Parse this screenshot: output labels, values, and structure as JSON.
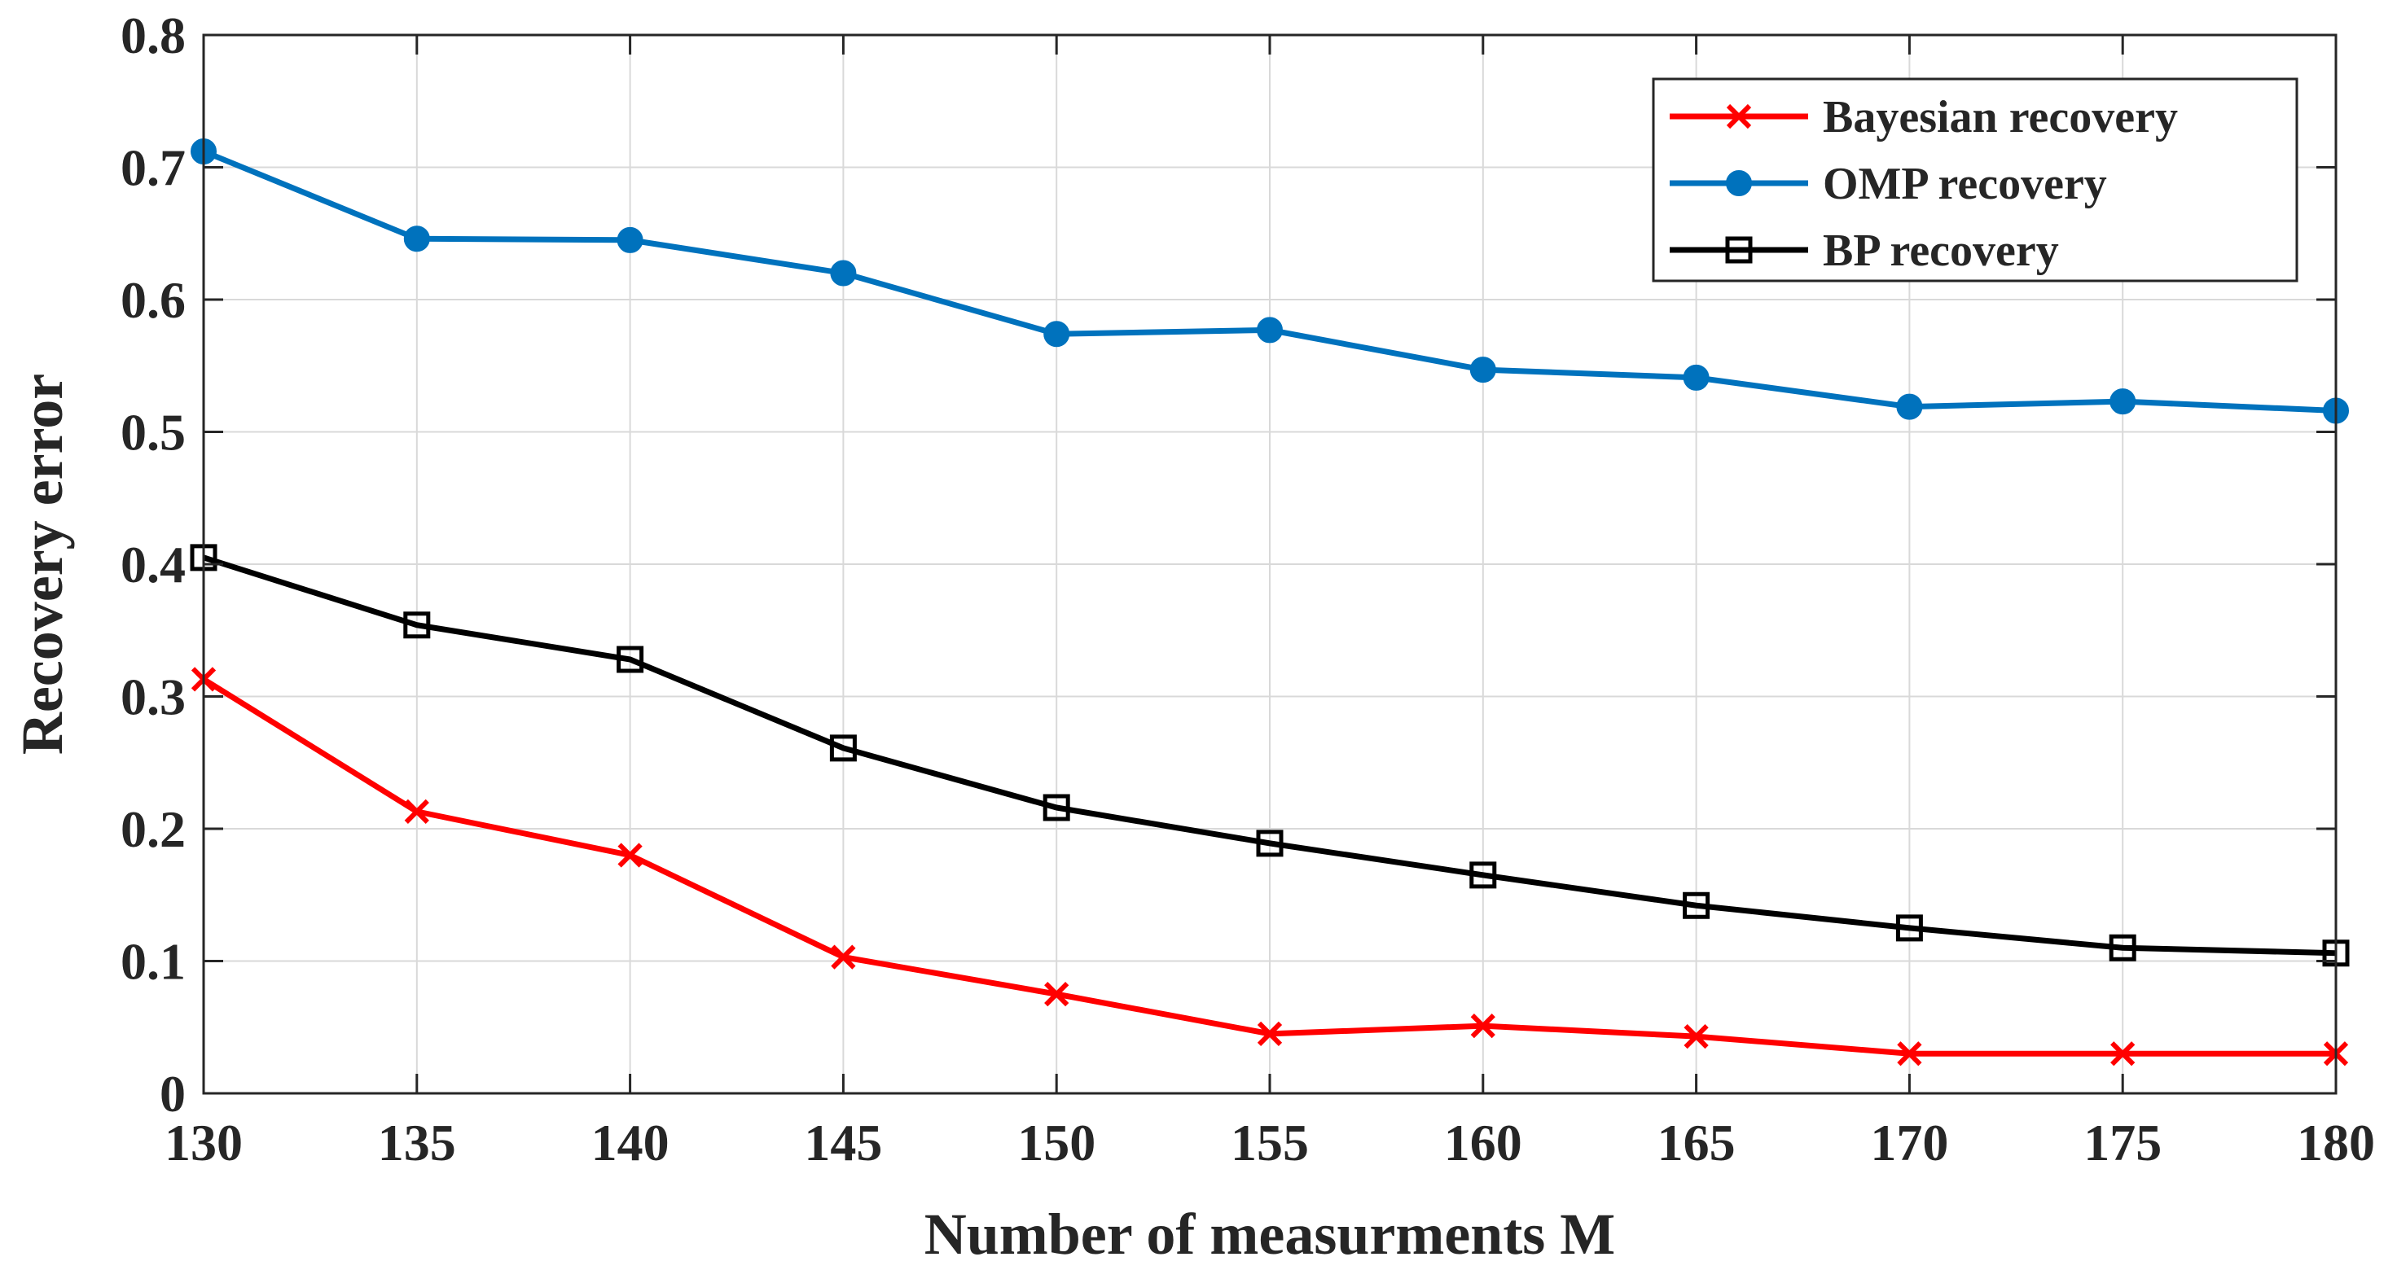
{
  "chart_data": {
    "type": "line",
    "title": "",
    "xlabel": "Number of measurments M",
    "ylabel": "Recovery error",
    "x": [
      130,
      135,
      140,
      145,
      150,
      155,
      160,
      165,
      170,
      175,
      180
    ],
    "xlim": [
      130,
      180
    ],
    "ylim": [
      0,
      0.8
    ],
    "xticks": [
      130,
      135,
      140,
      145,
      150,
      155,
      160,
      165,
      170,
      175,
      180
    ],
    "yticks": [
      0,
      0.1,
      0.2,
      0.3,
      0.4,
      0.5,
      0.6,
      0.7,
      0.8
    ],
    "grid": true,
    "legend_position": "top-right",
    "series": [
      {
        "name": "Bayesian recovery",
        "color": "#ff0000",
        "marker": "x",
        "values": [
          0.313,
          0.213,
          0.18,
          0.103,
          0.075,
          0.045,
          0.051,
          0.043,
          0.03,
          0.03,
          0.03
        ]
      },
      {
        "name": "OMP recovery",
        "color": "#0072bd",
        "marker": "circle",
        "values": [
          0.712,
          0.646,
          0.645,
          0.62,
          0.574,
          0.577,
          0.547,
          0.541,
          0.519,
          0.523,
          0.516
        ]
      },
      {
        "name": "BP recovery",
        "color": "#000000",
        "marker": "square",
        "values": [
          0.405,
          0.354,
          0.328,
          0.261,
          0.216,
          0.189,
          0.165,
          0.142,
          0.125,
          0.11,
          0.106
        ]
      }
    ]
  }
}
